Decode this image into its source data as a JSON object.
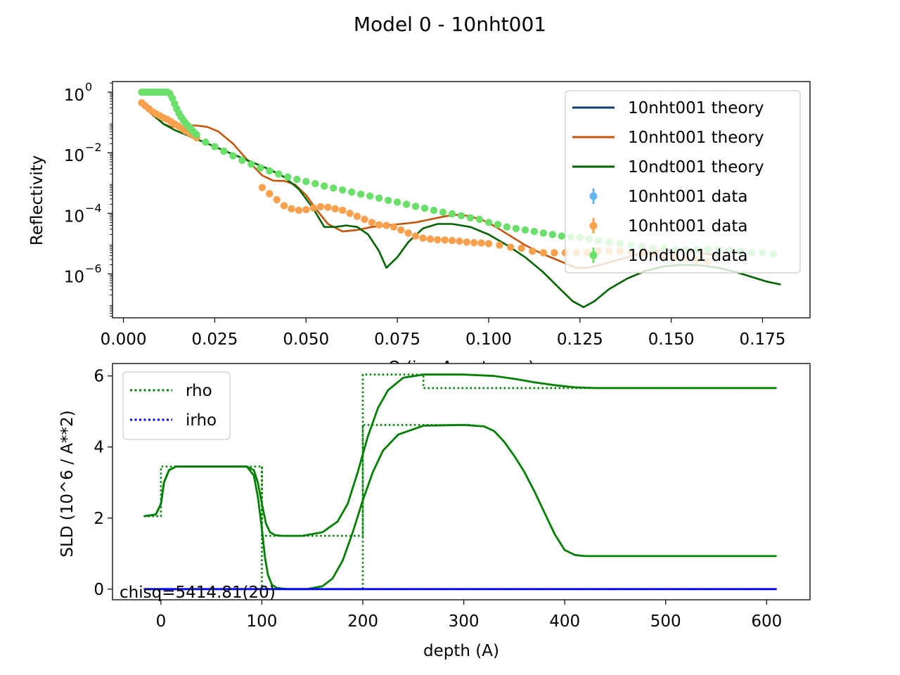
{
  "figure": {
    "title": "Model 0 - 10nht001"
  },
  "chart_data": [
    {
      "type": "line",
      "ylabel": "Reflectivity",
      "xlabel": "Q (inv Angstroms)",
      "yscale": "log",
      "xlim": [
        -0.003,
        0.188
      ],
      "ylim_log10": [
        -7.45,
        0.35
      ],
      "x_ticks": [
        0.0,
        0.025,
        0.05,
        0.075,
        0.1,
        0.125,
        0.15,
        0.175
      ],
      "x_tick_labels": [
        "0.000",
        "0.025",
        "0.050",
        "0.075",
        "0.100",
        "0.125",
        "0.150",
        "0.175"
      ],
      "y_ticks_log10": [
        0,
        -2,
        -4,
        -6
      ],
      "y_tick_labels": [
        "10",
        "10",
        "10",
        "10"
      ],
      "y_tick_exponents": [
        "0",
        "−2",
        "−4",
        "−6"
      ],
      "legend_position": "top-right",
      "legend": [
        {
          "label": "10nht001 theory",
          "kind": "line",
          "color": "#0b3c73"
        },
        {
          "label": "10nht001 theory",
          "kind": "line",
          "color": "#c4560b"
        },
        {
          "label": "10ndt001 theory",
          "kind": "line",
          "color": "#006400"
        },
        {
          "label": "10nht001 data",
          "kind": "errorbar",
          "color": "#62b6ef"
        },
        {
          "label": "10nht001 data",
          "kind": "errorbar",
          "color": "#f9a04d"
        },
        {
          "label": "10ndt001 data",
          "kind": "errorbar",
          "color": "#6ae06a"
        }
      ],
      "series": [
        {
          "name": "10nht001 theory",
          "kind": "line",
          "color": "#c4560b",
          "x": [
            0.005,
            0.008,
            0.011,
            0.013,
            0.015,
            0.018,
            0.02,
            0.023,
            0.026,
            0.03,
            0.034,
            0.038,
            0.041,
            0.044,
            0.047,
            0.05,
            0.053,
            0.056,
            0.06,
            0.064,
            0.068,
            0.072,
            0.076,
            0.08,
            0.084,
            0.088,
            0.091,
            0.094,
            0.098,
            0.102,
            0.106,
            0.11,
            0.114,
            0.118,
            0.121,
            0.124,
            0.127,
            0.13,
            0.135,
            0.14,
            0.145,
            0.15,
            0.155,
            0.16,
            0.163
          ],
          "y_log10": [
            -0.35,
            -0.75,
            -1.05,
            -1.15,
            -1.13,
            -1.1,
            -1.1,
            -1.15,
            -1.3,
            -1.7,
            -2.25,
            -2.75,
            -2.92,
            -2.93,
            -3.05,
            -3.4,
            -3.9,
            -4.35,
            -4.6,
            -4.55,
            -4.45,
            -4.4,
            -4.35,
            -4.3,
            -4.2,
            -4.1,
            -4.05,
            -4.08,
            -4.2,
            -4.45,
            -4.75,
            -5.05,
            -5.3,
            -5.5,
            -5.65,
            -5.8,
            -5.8,
            -5.72,
            -5.55,
            -5.38,
            -5.25,
            -5.2,
            -5.25,
            -5.35,
            -5.42
          ]
        },
        {
          "name": "10ndt001 theory",
          "kind": "line",
          "color": "#006400",
          "x": [
            0.005,
            0.008,
            0.011,
            0.014,
            0.017,
            0.02,
            0.025,
            0.03,
            0.035,
            0.04,
            0.044,
            0.048,
            0.052,
            0.055,
            0.058,
            0.061,
            0.064,
            0.067,
            0.07,
            0.072,
            0.075,
            0.078,
            0.082,
            0.086,
            0.09,
            0.095,
            0.1,
            0.105,
            0.11,
            0.115,
            0.12,
            0.123,
            0.126,
            0.129,
            0.133,
            0.138,
            0.143,
            0.148,
            0.153,
            0.158,
            0.163,
            0.168,
            0.172,
            0.176,
            0.18
          ],
          "y_log10": [
            -0.4,
            -0.75,
            -1.05,
            -1.25,
            -1.4,
            -1.55,
            -1.8,
            -2.05,
            -2.3,
            -2.55,
            -2.8,
            -3.2,
            -3.85,
            -4.45,
            -4.45,
            -4.4,
            -4.45,
            -4.7,
            -5.25,
            -5.8,
            -5.45,
            -4.95,
            -4.5,
            -4.35,
            -4.35,
            -4.45,
            -4.7,
            -5.05,
            -5.45,
            -5.95,
            -6.55,
            -6.9,
            -7.1,
            -6.9,
            -6.5,
            -6.15,
            -5.9,
            -5.75,
            -5.7,
            -5.72,
            -5.8,
            -5.95,
            -6.1,
            -6.25,
            -6.35
          ]
        },
        {
          "name": "10nht001 data",
          "kind": "markers",
          "color": "#f9a04d",
          "x": [
            0.005,
            0.006,
            0.007,
            0.008,
            0.009,
            0.01,
            0.011,
            0.012,
            0.013,
            0.014,
            0.015,
            0.016,
            0.017,
            0.018,
            0.019,
            0.02,
            0.038,
            0.04,
            0.042,
            0.044,
            0.046,
            0.048,
            0.05,
            0.052,
            0.054,
            0.056,
            0.058,
            0.06,
            0.062,
            0.064,
            0.066,
            0.068,
            0.07,
            0.072,
            0.074,
            0.076,
            0.078,
            0.08,
            0.082,
            0.084,
            0.086,
            0.088,
            0.09,
            0.092,
            0.094,
            0.096,
            0.098,
            0.1,
            0.103,
            0.106,
            0.109,
            0.112,
            0.115,
            0.118,
            0.121,
            0.124,
            0.127,
            0.13,
            0.133,
            0.136,
            0.139,
            0.142,
            0.145,
            0.148,
            0.151,
            0.154,
            0.157,
            0.16
          ],
          "y_log10": [
            -0.35,
            -0.45,
            -0.55,
            -0.65,
            -0.72,
            -0.78,
            -0.85,
            -0.9,
            -0.97,
            -1.05,
            -1.12,
            -1.2,
            -1.28,
            -1.35,
            -1.42,
            -1.5,
            -3.15,
            -3.35,
            -3.55,
            -3.75,
            -3.85,
            -3.9,
            -3.88,
            -3.82,
            -3.78,
            -3.8,
            -3.85,
            -3.9,
            -4.0,
            -4.1,
            -4.2,
            -4.3,
            -4.38,
            -4.4,
            -4.45,
            -4.55,
            -4.65,
            -4.75,
            -4.82,
            -4.85,
            -4.87,
            -4.88,
            -4.9,
            -4.92,
            -4.95,
            -4.97,
            -4.98,
            -5.0,
            -5.05,
            -5.12,
            -5.15,
            -5.25,
            -5.3,
            -5.3,
            -5.3,
            -5.3,
            -5.3,
            -5.25,
            -5.25,
            -5.25,
            -5.28,
            -5.3,
            -5.35,
            -5.4,
            -5.45,
            -5.5,
            -5.55,
            -5.6
          ]
        },
        {
          "name": "10ndt001 data",
          "kind": "markers",
          "color": "#6ae06a",
          "x": [
            0.005,
            0.0057,
            0.0064,
            0.0071,
            0.0078,
            0.0085,
            0.0092,
            0.0099,
            0.0106,
            0.0113,
            0.012,
            0.0127,
            0.0134,
            0.014,
            0.0146,
            0.0152,
            0.0158,
            0.0164,
            0.017,
            0.0176,
            0.0182,
            0.0188,
            0.0194,
            0.02,
            0.0225,
            0.025,
            0.0275,
            0.03,
            0.0325,
            0.035,
            0.0375,
            0.04,
            0.0425,
            0.045,
            0.0475,
            0.05,
            0.0525,
            0.055,
            0.0575,
            0.06,
            0.0625,
            0.065,
            0.0675,
            0.07,
            0.0725,
            0.075,
            0.0775,
            0.08,
            0.0825,
            0.085,
            0.0875,
            0.09,
            0.0925,
            0.095,
            0.0975,
            0.1,
            0.1025,
            0.105,
            0.1075,
            0.11,
            0.1125,
            0.115,
            0.1175,
            0.12,
            0.1225,
            0.125,
            0.1275,
            0.13,
            0.133,
            0.136,
            0.139,
            0.142,
            0.145,
            0.148,
            0.151,
            0.154,
            0.157,
            0.16,
            0.163,
            0.166,
            0.169,
            0.172,
            0.175,
            0.178
          ],
          "y_log10": [
            0.0,
            0.0,
            0.0,
            0.0,
            0.0,
            0.0,
            0.0,
            0.0,
            0.0,
            0.0,
            0.0,
            -0.05,
            -0.2,
            -0.38,
            -0.55,
            -0.7,
            -0.82,
            -0.93,
            -1.02,
            -1.1,
            -1.18,
            -1.26,
            -1.33,
            -1.4,
            -1.65,
            -1.8,
            -1.95,
            -2.1,
            -2.25,
            -2.38,
            -2.5,
            -2.6,
            -2.7,
            -2.8,
            -2.88,
            -2.95,
            -3.02,
            -3.1,
            -3.17,
            -3.23,
            -3.3,
            -3.37,
            -3.43,
            -3.5,
            -3.57,
            -3.63,
            -3.7,
            -3.77,
            -3.83,
            -3.9,
            -3.96,
            -4.02,
            -4.08,
            -4.15,
            -4.2,
            -4.3,
            -4.37,
            -4.45,
            -4.5,
            -4.55,
            -4.6,
            -4.65,
            -4.7,
            -4.75,
            -4.78,
            -4.8,
            -4.85,
            -4.9,
            -4.95,
            -5.0,
            -5.05,
            -5.1,
            -5.15,
            -5.15,
            -5.2,
            -5.2,
            -5.2,
            -5.2,
            -5.2,
            -5.22,
            -5.25,
            -5.3,
            -5.3,
            -5.35
          ]
        }
      ]
    },
    {
      "type": "line",
      "xlabel": "depth (A)",
      "ylabel": "SLD (10^6 / A**2)",
      "xlim": [
        -48,
        643
      ],
      "ylim": [
        -0.3,
        6.35
      ],
      "x_ticks": [
        0,
        100,
        200,
        300,
        400,
        500,
        600
      ],
      "x_tick_labels": [
        "0",
        "100",
        "200",
        "300",
        "400",
        "500",
        "600"
      ],
      "y_ticks": [
        0,
        2,
        4,
        6
      ],
      "y_tick_labels": [
        "0",
        "2",
        "4",
        "6"
      ],
      "legend_position": "top-left",
      "legend": [
        {
          "label": "rho",
          "style": "dotted",
          "color": "#008000"
        },
        {
          "label": "irho",
          "style": "dotted",
          "color": "#0000ff"
        }
      ],
      "annotation": "chisq=5414.81(20)",
      "series": [
        {
          "name": "rho",
          "style": "solid",
          "color": "#008000",
          "x": [
            -17,
            -5,
            0,
            3,
            8,
            15,
            30,
            60,
            85,
            92,
            96,
            100,
            104,
            108,
            113,
            120,
            140,
            160,
            175,
            185,
            195,
            205,
            215,
            225,
            240,
            260,
            300,
            330,
            350,
            370,
            390,
            410,
            430,
            480,
            540,
            610
          ],
          "y": [
            2.05,
            2.1,
            2.4,
            3.0,
            3.35,
            3.45,
            3.45,
            3.45,
            3.45,
            3.35,
            3.0,
            2.4,
            1.85,
            1.6,
            1.52,
            1.5,
            1.5,
            1.6,
            1.9,
            2.4,
            3.3,
            4.3,
            5.1,
            5.6,
            5.95,
            6.04,
            6.04,
            6.0,
            5.92,
            5.82,
            5.74,
            5.68,
            5.66,
            5.66,
            5.66,
            5.66
          ]
        },
        {
          "name": "rho",
          "style": "solid",
          "color": "#008000",
          "x": [
            -17,
            -5,
            0,
            3,
            8,
            15,
            30,
            60,
            85,
            92,
            96,
            100,
            103,
            106,
            110,
            115,
            125,
            145,
            160,
            170,
            180,
            190,
            200,
            210,
            220,
            235,
            260,
            300,
            320,
            330,
            340,
            350,
            360,
            370,
            380,
            390,
            400,
            410,
            420,
            480,
            540,
            610
          ],
          "y": [
            2.05,
            2.1,
            2.4,
            3.0,
            3.35,
            3.45,
            3.45,
            3.45,
            3.45,
            3.2,
            2.6,
            1.7,
            0.9,
            0.4,
            0.12,
            0.03,
            0.0,
            0.0,
            0.08,
            0.3,
            0.8,
            1.6,
            2.5,
            3.3,
            3.9,
            4.35,
            4.6,
            4.62,
            4.58,
            4.45,
            4.15,
            3.75,
            3.3,
            2.75,
            2.15,
            1.55,
            1.1,
            0.96,
            0.93,
            0.93,
            0.93,
            0.93
          ]
        },
        {
          "name": "rho",
          "style": "dotted",
          "color": "#008000",
          "x": [
            -17,
            0,
            0,
            100,
            100,
            200,
            200,
            260,
            260,
            610
          ],
          "y": [
            2.05,
            2.05,
            3.45,
            3.45,
            1.5,
            1.5,
            6.04,
            6.04,
            5.66,
            5.66
          ]
        },
        {
          "name": "rho",
          "style": "dotted",
          "color": "#008000",
          "x": [
            100,
            100,
            200,
            200,
            310
          ],
          "y": [
            3.45,
            0.0,
            0.0,
            4.62,
            4.62
          ]
        },
        {
          "name": "irho",
          "style": "solid",
          "color": "#0000ff",
          "x": [
            -17,
            610
          ],
          "y": [
            0.0,
            0.0
          ]
        },
        {
          "name": "irho",
          "style": "dotted",
          "color": "#0000ff",
          "x": [
            -17,
            610
          ],
          "y": [
            0.0,
            0.0
          ]
        }
      ]
    }
  ]
}
